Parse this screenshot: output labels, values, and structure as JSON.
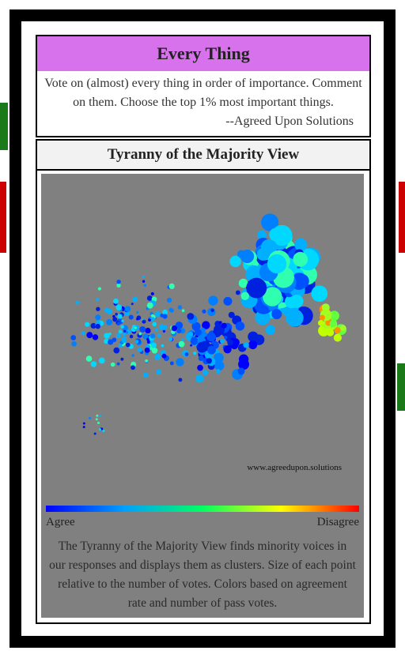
{
  "header": {
    "title": "Every Thing",
    "description": "Vote on (almost) every thing in order of importance. Comment on them. Choose the top 1% most important things.",
    "attribution": "--Agreed Upon Solutions"
  },
  "section": {
    "title": "Tyranny of the Majority View"
  },
  "figure": {
    "watermark": "www.agreedupon.solutions",
    "legend_left": "Agree",
    "legend_right": "Disagree",
    "caption": "The Tyranny of the Majority View finds minority voices in our responses and displays them as clusters. Size of each point relative to the number of votes. Colors based on agreement rate and number of pass votes."
  }
}
